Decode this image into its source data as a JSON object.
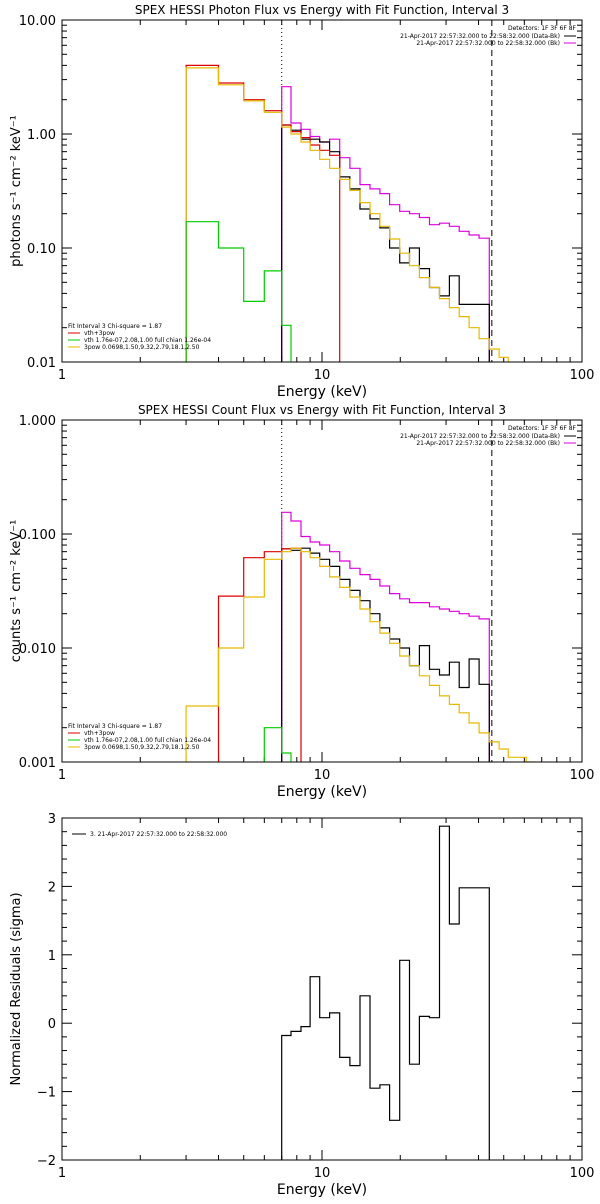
{
  "chart_data": [
    {
      "type": "line",
      "title": "SPEX HESSI Photon Flux vs Energy with Fit Function, Interval 3",
      "xlabel": "Energy (keV)",
      "ylabel": "photons s⁻¹ cm⁻² keV⁻¹",
      "xscale": "log",
      "yscale": "log",
      "xlim": [
        1,
        100
      ],
      "ylim": [
        0.01,
        10
      ],
      "xticks": [
        "1",
        "10",
        "100"
      ],
      "yticks": [
        "10.00",
        "1.00",
        "0.10",
        "0.01"
      ],
      "vlines": [
        {
          "x": 7,
          "style": "dotted"
        },
        {
          "x": 45,
          "style": "dashed"
        }
      ],
      "legend_top": {
        "header": "Detectors: 1F 3F 6F 8F",
        "entries": [
          {
            "label": "21-Apr-2017 22:57:32.000 to 22:58:32.000 (Data-Bk)",
            "color": "#000000"
          },
          {
            "label": "21-Apr-2017 22:57:32.000 to 22:58:32.000 (Bk)",
            "color": "#dd00dd"
          }
        ]
      },
      "legend_bottom": {
        "header": "Fit Interval 3    Chi-square = 1.87",
        "entries": [
          {
            "label": "vth+3pow",
            "color": "#dd0000"
          },
          {
            "label": "vth 1.76e-07,2.08,1.00  full chian 1.26e-04",
            "color": "#00cc00"
          },
          {
            "label": "3pow 0.0698,1.50,9.32,2.79,18.1,2.50",
            "color": "#e6b800"
          }
        ]
      },
      "series": [
        {
          "color": "#dd00dd",
          "edges": [
            7,
            7.6,
            8.3,
            9,
            9.8,
            10.7,
            11.7,
            12.8,
            14,
            15.3,
            16.7,
            18.2,
            19.9,
            21.7,
            23.7,
            25.9,
            28.3,
            30.9,
            33.7,
            36.8,
            40.2,
            44
          ],
          "values": [
            2.6,
            1.25,
            1.1,
            0.95,
            0.85,
            0.9,
            0.62,
            0.5,
            0.36,
            0.33,
            0.3,
            0.24,
            0.21,
            0.2,
            0.185,
            0.16,
            0.165,
            0.155,
            0.14,
            0.13,
            0.122
          ]
        },
        {
          "color": "#000000",
          "edges": [
            7,
            7.6,
            8.3,
            9,
            9.8,
            10.7,
            11.7,
            12.8,
            14,
            15.3,
            16.7,
            18.2,
            19.9,
            21.7,
            23.7,
            25.9,
            28.3,
            30.9,
            33.7,
            36.8,
            40.2,
            44
          ],
          "values": [
            1.2,
            1.08,
            0.9,
            0.9,
            0.85,
            0.7,
            0.42,
            0.33,
            0.22,
            0.18,
            0.15,
            0.1,
            0.074,
            0.1,
            0.066,
            0.045,
            0.038,
            0.057,
            0.032,
            0.032,
            0.032
          ]
        },
        {
          "color": "#dd0000",
          "edges": [
            3,
            4,
            5,
            6,
            7,
            7.6,
            8.3,
            9,
            9.8,
            10.7,
            11.7
          ],
          "values": [
            4.0,
            2.8,
            2.0,
            1.6,
            1.2,
            1.05,
            0.93,
            0.8,
            0.72,
            0.65
          ]
        },
        {
          "color": "#e6b800",
          "edges": [
            3,
            4,
            5,
            6,
            7,
            7.6,
            8.3,
            9,
            9.8,
            10.7,
            11.7,
            12.8,
            14,
            15.3,
            16.7,
            18.2,
            19.9,
            21.7,
            23.7,
            25.9,
            28.3,
            30.9,
            33.7,
            36.8,
            40.2,
            44,
            48,
            52,
            56
          ],
          "values": [
            3.8,
            2.7,
            1.95,
            1.55,
            1.15,
            1.0,
            0.85,
            0.72,
            0.6,
            0.5,
            0.4,
            0.32,
            0.25,
            0.2,
            0.155,
            0.12,
            0.09,
            0.07,
            0.055,
            0.045,
            0.036,
            0.03,
            0.025,
            0.02,
            0.016,
            0.013,
            0.011,
            0.0095
          ]
        },
        {
          "color": "#00cc00",
          "edges": [
            3,
            4,
            5,
            6,
            7,
            7.6,
            8.3
          ],
          "values": [
            0.17,
            0.1,
            0.034,
            0.063,
            0.021,
            0.009
          ]
        }
      ]
    },
    {
      "type": "line",
      "title": "SPEX HESSI Count Flux vs Energy with Fit Function, Interval 3",
      "xlabel": "Energy (keV)",
      "ylabel": "counts s⁻¹ cm⁻² keV⁻¹",
      "xscale": "log",
      "yscale": "log",
      "xlim": [
        1,
        100
      ],
      "ylim": [
        0.001,
        1
      ],
      "xticks": [
        "1",
        "10",
        "100"
      ],
      "yticks": [
        "1.000",
        "0.100",
        "0.010",
        "0.001"
      ],
      "vlines": [
        {
          "x": 7,
          "style": "dotted"
        },
        {
          "x": 45,
          "style": "dashed"
        }
      ],
      "legend_top": {
        "header": "Detectors: 1F 3F 6F 8F",
        "entries": [
          {
            "label": "21-Apr-2017 22:57:32.000 to 22:58:32.000 (Data-Bk)",
            "color": "#000000"
          },
          {
            "label": "21-Apr-2017 22:57:32.000 to 22:58:32.000 (Bk)",
            "color": "#dd00dd"
          }
        ]
      },
      "legend_bottom": {
        "header": "Fit Interval 3    Chi-square = 1.87",
        "entries": [
          {
            "label": "vth+3pow",
            "color": "#dd0000"
          },
          {
            "label": "vth 1.76e-07,2.08,1.00  full chian 1.26e-04",
            "color": "#00cc00"
          },
          {
            "label": "3pow 0.0698,1.50,9.32,2.79,18.1,2.50",
            "color": "#e6b800"
          }
        ]
      },
      "series": [
        {
          "color": "#dd00dd",
          "edges": [
            7,
            7.6,
            8.3,
            9,
            9.8,
            10.7,
            11.7,
            12.8,
            14,
            15.3,
            16.7,
            18.2,
            19.9,
            21.7,
            23.7,
            25.9,
            28.3,
            30.9,
            33.7,
            36.8,
            40.2,
            44
          ],
          "values": [
            0.155,
            0.13,
            0.095,
            0.085,
            0.08,
            0.07,
            0.058,
            0.05,
            0.044,
            0.04,
            0.035,
            0.03,
            0.027,
            0.025,
            0.025,
            0.023,
            0.022,
            0.021,
            0.02,
            0.019,
            0.018
          ]
        },
        {
          "color": "#000000",
          "edges": [
            7,
            7.6,
            8.3,
            9,
            9.8,
            10.7,
            11.7,
            12.8,
            14,
            15.3,
            16.7,
            18.2,
            19.9,
            21.7,
            23.7,
            25.9,
            28.3,
            30.9,
            33.7,
            36.8,
            40.2,
            44
          ],
          "values": [
            0.074,
            0.072,
            0.075,
            0.068,
            0.06,
            0.052,
            0.04,
            0.032,
            0.026,
            0.02,
            0.015,
            0.012,
            0.01,
            0.007,
            0.0105,
            0.0065,
            0.0058,
            0.0075,
            0.0045,
            0.008,
            0.0048
          ]
        },
        {
          "color": "#dd0000",
          "edges": [
            4,
            5,
            6,
            7,
            7.6,
            8.3
          ],
          "values": [
            0.0285,
            0.062,
            0.07,
            0.074,
            0.075
          ]
        },
        {
          "color": "#e6b800",
          "edges": [
            3,
            4,
            5,
            6,
            7,
            7.6,
            8.3,
            9,
            9.8,
            10.7,
            11.7,
            12.8,
            14,
            15.3,
            16.7,
            18.2,
            19.9,
            21.7,
            23.7,
            25.9,
            28.3,
            30.9,
            33.7,
            36.8,
            40.2,
            44,
            48,
            52,
            56,
            61,
            66
          ],
          "values": [
            0.0031,
            0.01,
            0.028,
            0.06,
            0.07,
            0.075,
            0.07,
            0.062,
            0.052,
            0.042,
            0.034,
            0.028,
            0.022,
            0.017,
            0.0135,
            0.011,
            0.0085,
            0.007,
            0.0057,
            0.0047,
            0.0038,
            0.0032,
            0.0027,
            0.0022,
            0.0018,
            0.0015,
            0.0013,
            0.0011,
            0.0011,
            0.001
          ]
        },
        {
          "color": "#00cc00",
          "edges": [
            6,
            7,
            7.6,
            8.3
          ],
          "values": [
            0.002,
            0.0012,
            0.0009
          ]
        }
      ]
    },
    {
      "type": "line",
      "title": "",
      "xlabel": "Energy (keV)",
      "ylabel": "Normalized Residuals (sigma)",
      "xscale": "log",
      "yscale": "linear",
      "xlim": [
        1,
        100
      ],
      "ylim": [
        -2,
        3
      ],
      "xticks": [
        "1",
        "10",
        "100"
      ],
      "yticks": [
        "3",
        "2",
        "1",
        "0",
        "−1",
        "−2"
      ],
      "legend_top": {
        "header": "",
        "entries": [
          {
            "label": "3. 21-Apr-2017 22:57:32.000 to 22:58:32.000",
            "color": "#000000"
          }
        ]
      },
      "series": [
        {
          "color": "#000000",
          "edges": [
            7,
            7.6,
            8.3,
            9,
            9.8,
            10.7,
            11.7,
            12.8,
            14,
            15.3,
            16.7,
            18.2,
            19.9,
            21.7,
            23.7,
            25.9,
            28.3,
            30.9,
            33.7,
            36.8,
            40.2,
            44
          ],
          "values": [
            -0.18,
            -0.12,
            -0.05,
            0.68,
            0.08,
            0.15,
            -0.5,
            -0.62,
            0.4,
            -0.95,
            -0.9,
            -1.42,
            0.92,
            -0.6,
            0.1,
            0.08,
            2.88,
            1.45,
            1.98,
            1.98,
            1.98
          ],
          "bottom": -2
        }
      ]
    }
  ]
}
